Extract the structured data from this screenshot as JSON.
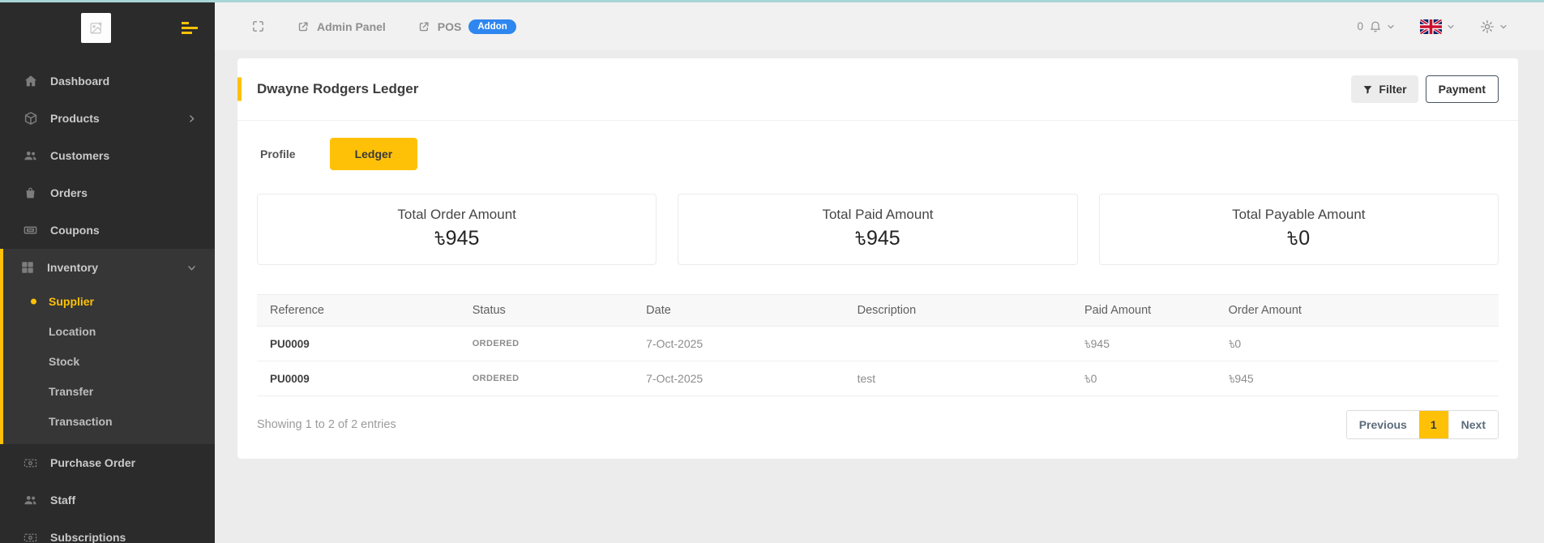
{
  "topbar": {
    "notification_count": "0",
    "links": [
      {
        "label": "Admin Panel"
      },
      {
        "label": "POS",
        "badge": "Addon"
      }
    ]
  },
  "sidebar": {
    "items": [
      {
        "name": "dashboard",
        "label": "Dashboard",
        "icon": "home"
      },
      {
        "name": "products",
        "label": "Products",
        "icon": "box",
        "chevron": "right"
      },
      {
        "name": "customers",
        "label": "Customers",
        "icon": "users"
      },
      {
        "name": "orders",
        "label": "Orders",
        "icon": "bag"
      },
      {
        "name": "coupons",
        "label": "Coupons",
        "icon": "ticket"
      },
      {
        "name": "inventory",
        "label": "Inventory",
        "icon": "grid",
        "chevron": "down",
        "active": true,
        "children": [
          {
            "name": "supplier",
            "label": "Supplier",
            "active": true
          },
          {
            "name": "location",
            "label": "Location"
          },
          {
            "name": "stock",
            "label": "Stock"
          },
          {
            "name": "transfer",
            "label": "Transfer"
          },
          {
            "name": "transaction",
            "label": "Transaction"
          }
        ]
      },
      {
        "name": "purchase-order",
        "label": "Purchase Order",
        "icon": "banknote"
      },
      {
        "name": "staff",
        "label": "Staff",
        "icon": "users"
      },
      {
        "name": "subscriptions",
        "label": "Subscriptions",
        "icon": "banknote"
      }
    ]
  },
  "page": {
    "title": "Dwayne Rodgers Ledger",
    "filter_label": "Filter",
    "payment_label": "Payment",
    "tabs": [
      {
        "label": "Profile"
      },
      {
        "label": "Ledger",
        "active": true
      }
    ]
  },
  "summary_cards": [
    {
      "title": "Total Order Amount",
      "value": "৳945"
    },
    {
      "title": "Total Paid Amount",
      "value": "৳945"
    },
    {
      "title": "Total Payable Amount",
      "value": "৳0"
    }
  ],
  "table": {
    "columns": [
      "Reference",
      "Status",
      "Date",
      "Description",
      "Paid Amount",
      "Order Amount"
    ],
    "rows": [
      [
        "PU0009",
        "ORDERED",
        "7-Oct-2025",
        "",
        "৳945",
        "৳0"
      ],
      [
        "PU0009",
        "ORDERED",
        "7-Oct-2025",
        "test",
        "৳0",
        "৳945"
      ]
    ],
    "footer": "Showing 1 to 2 of 2 entries",
    "pagination": {
      "previous": "Previous",
      "page": "1",
      "next": "Next"
    }
  },
  "colors": {
    "accent": "#ffc107",
    "addon_badge": "#2e86f0",
    "top_strip": "#a9d5d7",
    "sidebar_bg": "#2b2b2b"
  }
}
